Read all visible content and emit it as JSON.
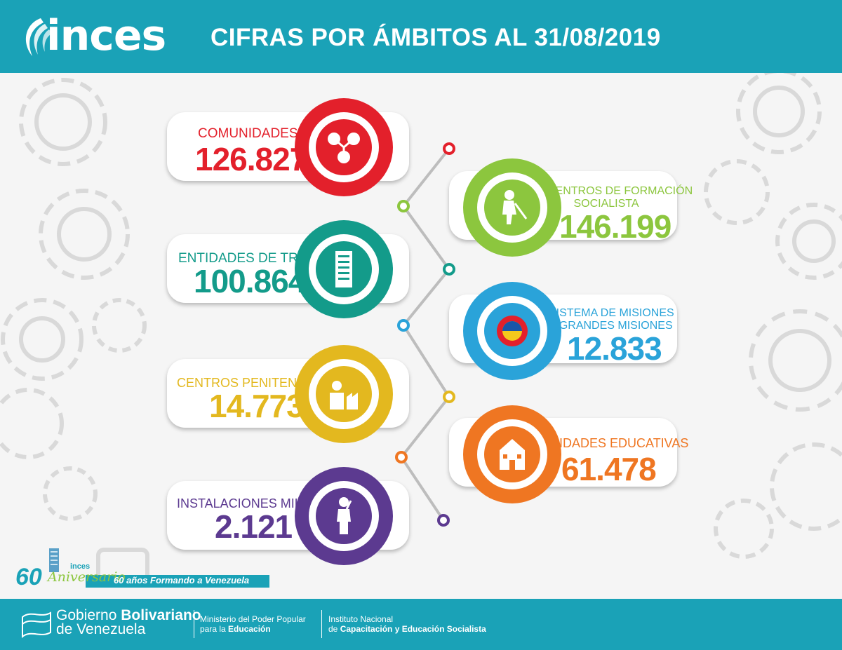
{
  "header": {
    "logo_text": "inces",
    "title": "CIFRAS POR ÁMBITOS AL 31/08/2019"
  },
  "items": [
    {
      "label": "COMUNIDADES",
      "value": "126.827",
      "color": "#e3202b",
      "icon": "community-icon"
    },
    {
      "label_lines": [
        "CENTROS DE FORMACIÓN",
        "SOCIALISTA"
      ],
      "value": "146.199",
      "color": "#8cc63e",
      "icon": "worker-icon"
    },
    {
      "label": "ENTIDADES DE TRABAJO",
      "value": "100.864",
      "color": "#139b8a",
      "icon": "building-icon"
    },
    {
      "label_lines": [
        "SISTEMA DE MISIONES",
        "Y GRANDES MISIONES"
      ],
      "value": "12.833",
      "color": "#2aa3d9",
      "icon": "missions-icon"
    },
    {
      "label": "CENTROS PENITENCIARIOS",
      "value": "14.773",
      "color": "#e3b81f",
      "icon": "factory-worker-icon"
    },
    {
      "label": "UNIDADES EDUCATIVAS",
      "value": "61.478",
      "color": "#ef7622",
      "icon": "school-icon"
    },
    {
      "label": "INSTALACIONES MILITARES",
      "value": "2.121",
      "color": "#5c3a90",
      "icon": "soldier-icon"
    }
  ],
  "anniversary": {
    "number": "60",
    "word": "Aniversario",
    "brand": "inces",
    "slogan": "60 años Formando a Venezuela"
  },
  "footer": {
    "gov_line1_regular": "Gobierno ",
    "gov_line1_bold": "Bolivariano",
    "gov_line2": "de Venezuela",
    "ministry_line1": "Ministerio del Poder Popular",
    "ministry_line2_regular": "para la ",
    "ministry_line2_bold": "Educación",
    "institute_line1": "Instituto Nacional",
    "institute_line2_regular": "de ",
    "institute_line2_bold": "Capacitación y Educación Socialista"
  }
}
